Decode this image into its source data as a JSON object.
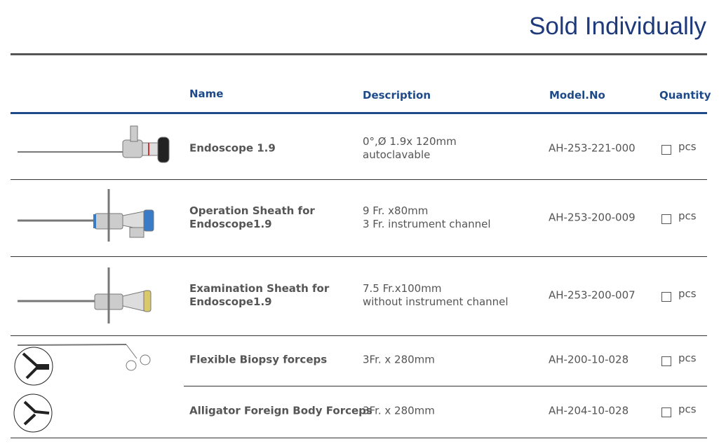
{
  "header": {
    "title": "Sold Individually"
  },
  "table": {
    "columns": [
      "Name",
      "Description",
      "Model.No",
      "Quantity"
    ],
    "rows": [
      {
        "name": [
          "Endoscope 1.9"
        ],
        "description": [
          "0°,Ø 1.9x 120mm",
          "autoclavable"
        ],
        "model": "AH-253-221-000",
        "unit": "pcs"
      },
      {
        "name": [
          "Operation Sheath for",
          "Endoscope1.9"
        ],
        "description": [
          "9 Fr. x80mm",
          "3 Fr. instrument channel"
        ],
        "model": "AH-253-200-009",
        "unit": "pcs"
      },
      {
        "name": [
          "Examination Sheath for",
          "Endoscope1.9"
        ],
        "description": [
          "7.5 Fr.x100mm",
          "without instrument channel"
        ],
        "model": "AH-253-200-007",
        "unit": "pcs"
      },
      {
        "name": [
          "Flexible Biopsy forceps"
        ],
        "description": [
          "3Fr. x 280mm"
        ],
        "model": "AH-200-10-028",
        "unit": "pcs"
      },
      {
        "name": [
          "Alligator Foreign Body Forceps"
        ],
        "description": [
          "3Fr. x 280mm"
        ],
        "model": "AH-204-10-028",
        "unit": "pcs"
      }
    ]
  }
}
